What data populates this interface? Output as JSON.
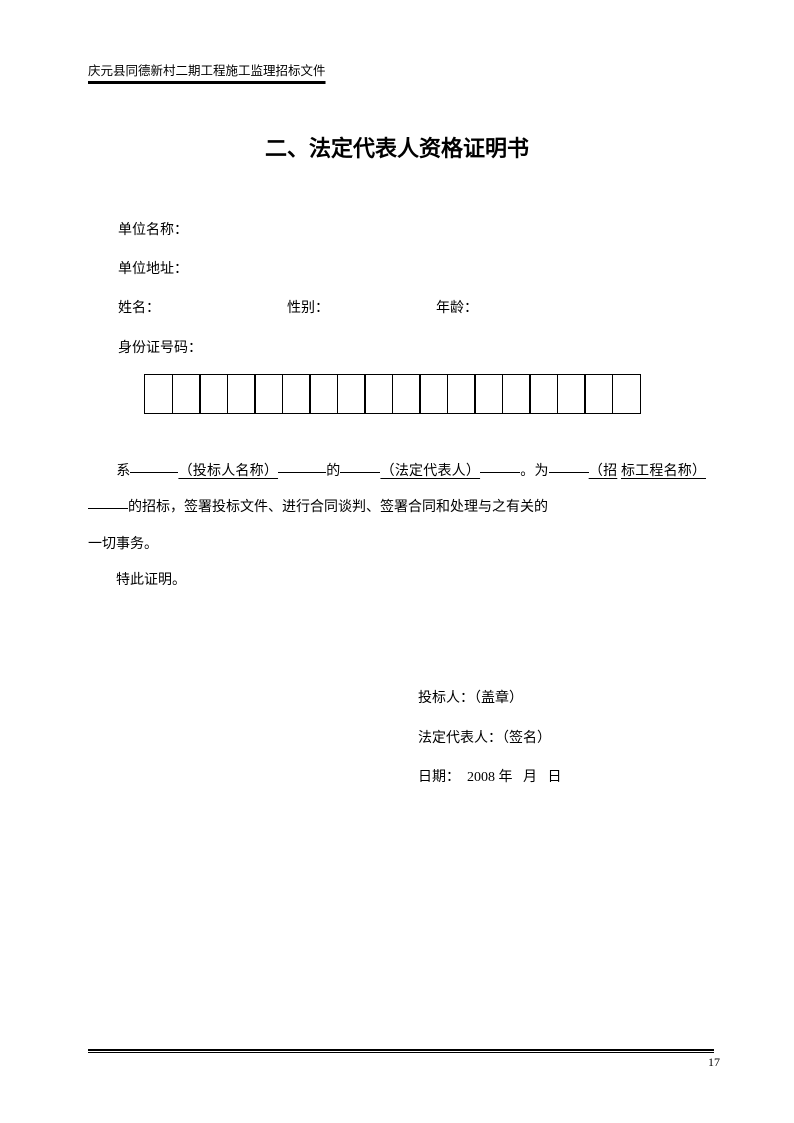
{
  "header": "庆元县同德新村二期工程施工监理招标文件",
  "title": "二、法定代表人资格证明书",
  "fields": {
    "unit_name_label": "单位名称：",
    "unit_addr_label": "单位地址：",
    "name_label": "姓名：",
    "gender_label": "性别：",
    "age_label": "年龄：",
    "id_label": "身份证号码："
  },
  "body": {
    "p1_a": "系",
    "p1_bidder": "（投标人名称）",
    "p1_b": "的",
    "p1_legal": "（法定代表人）",
    "p1_c": "。为",
    "p1_proj1": "（招",
    "p1_proj2": "标工程名称）",
    "p1_d": "的招标，签署投标文件、进行合同谈判、签署合同和处理与之有关的",
    "p1_e": "一切事务。",
    "p2": "特此证明。"
  },
  "sig": {
    "bidder": "投标人：（盖章）",
    "legal": "法定代表人：（签名）",
    "date_label": "日期：",
    "year": "2008",
    "year_unit": "年",
    "month_unit": "月",
    "day_unit": "日"
  },
  "page_number": "17",
  "id_box_count": 18
}
